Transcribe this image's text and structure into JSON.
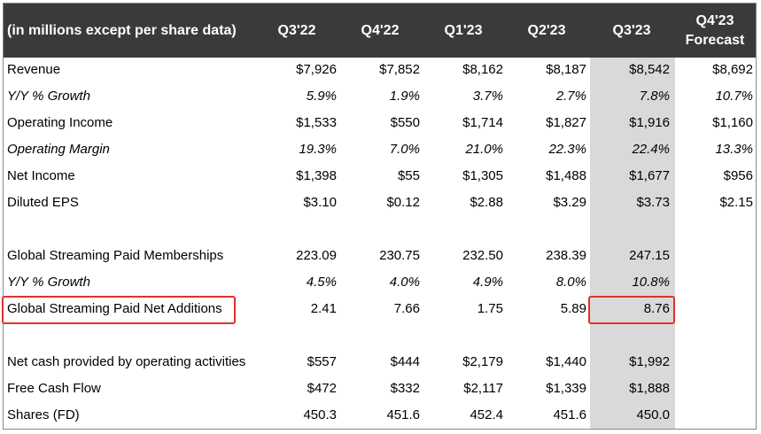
{
  "header": {
    "label": "(in millions except per share data)",
    "columns": [
      "Q3'22",
      "Q4'22",
      "Q1'23",
      "Q2'23",
      "Q3'23"
    ],
    "forecast_line1": "Q4'23",
    "forecast_line2": "Forecast"
  },
  "rows": [
    {
      "label": "Revenue",
      "values": [
        "$7,926",
        "$7,852",
        "$8,162",
        "$8,187",
        "$8,542",
        "$8,692"
      ]
    },
    {
      "label": "Y/Y % Growth",
      "values": [
        "5.9%",
        "1.9%",
        "3.7%",
        "2.7%",
        "7.8%",
        "10.7%"
      ]
    },
    {
      "label": "Operating Income",
      "values": [
        "$1,533",
        "$550",
        "$1,714",
        "$1,827",
        "$1,916",
        "$1,160"
      ]
    },
    {
      "label": "Operating Margin",
      "values": [
        "19.3%",
        "7.0%",
        "21.0%",
        "22.3%",
        "22.4%",
        "13.3%"
      ]
    },
    {
      "label": "Net Income",
      "values": [
        "$1,398",
        "$55",
        "$1,305",
        "$1,488",
        "$1,677",
        "$956"
      ]
    },
    {
      "label": "Diluted EPS",
      "values": [
        "$3.10",
        "$0.12",
        "$2.88",
        "$3.29",
        "$3.73",
        "$2.15"
      ]
    },
    {
      "label": "Global Streaming Paid Memberships",
      "values": [
        "223.09",
        "230.75",
        "232.50",
        "238.39",
        "247.15",
        ""
      ]
    },
    {
      "label": "Y/Y % Growth",
      "values": [
        "4.5%",
        "4.0%",
        "4.9%",
        "8.0%",
        "10.8%",
        ""
      ]
    },
    {
      "label": "Global Streaming Paid Net Additions",
      "values": [
        "2.41",
        "7.66",
        "1.75",
        "5.89",
        "8.76",
        ""
      ]
    },
    {
      "label": "Net cash provided by operating activities",
      "values": [
        "$557",
        "$444",
        "$2,179",
        "$1,440",
        "$1,992",
        ""
      ]
    },
    {
      "label": "Free Cash Flow",
      "values": [
        "$472",
        "$332",
        "$2,117",
        "$1,339",
        "$1,888",
        ""
      ]
    },
    {
      "label": "Shares (FD)",
      "values": [
        "450.3",
        "451.6",
        "452.4",
        "451.6",
        "450.0",
        ""
      ]
    }
  ]
}
